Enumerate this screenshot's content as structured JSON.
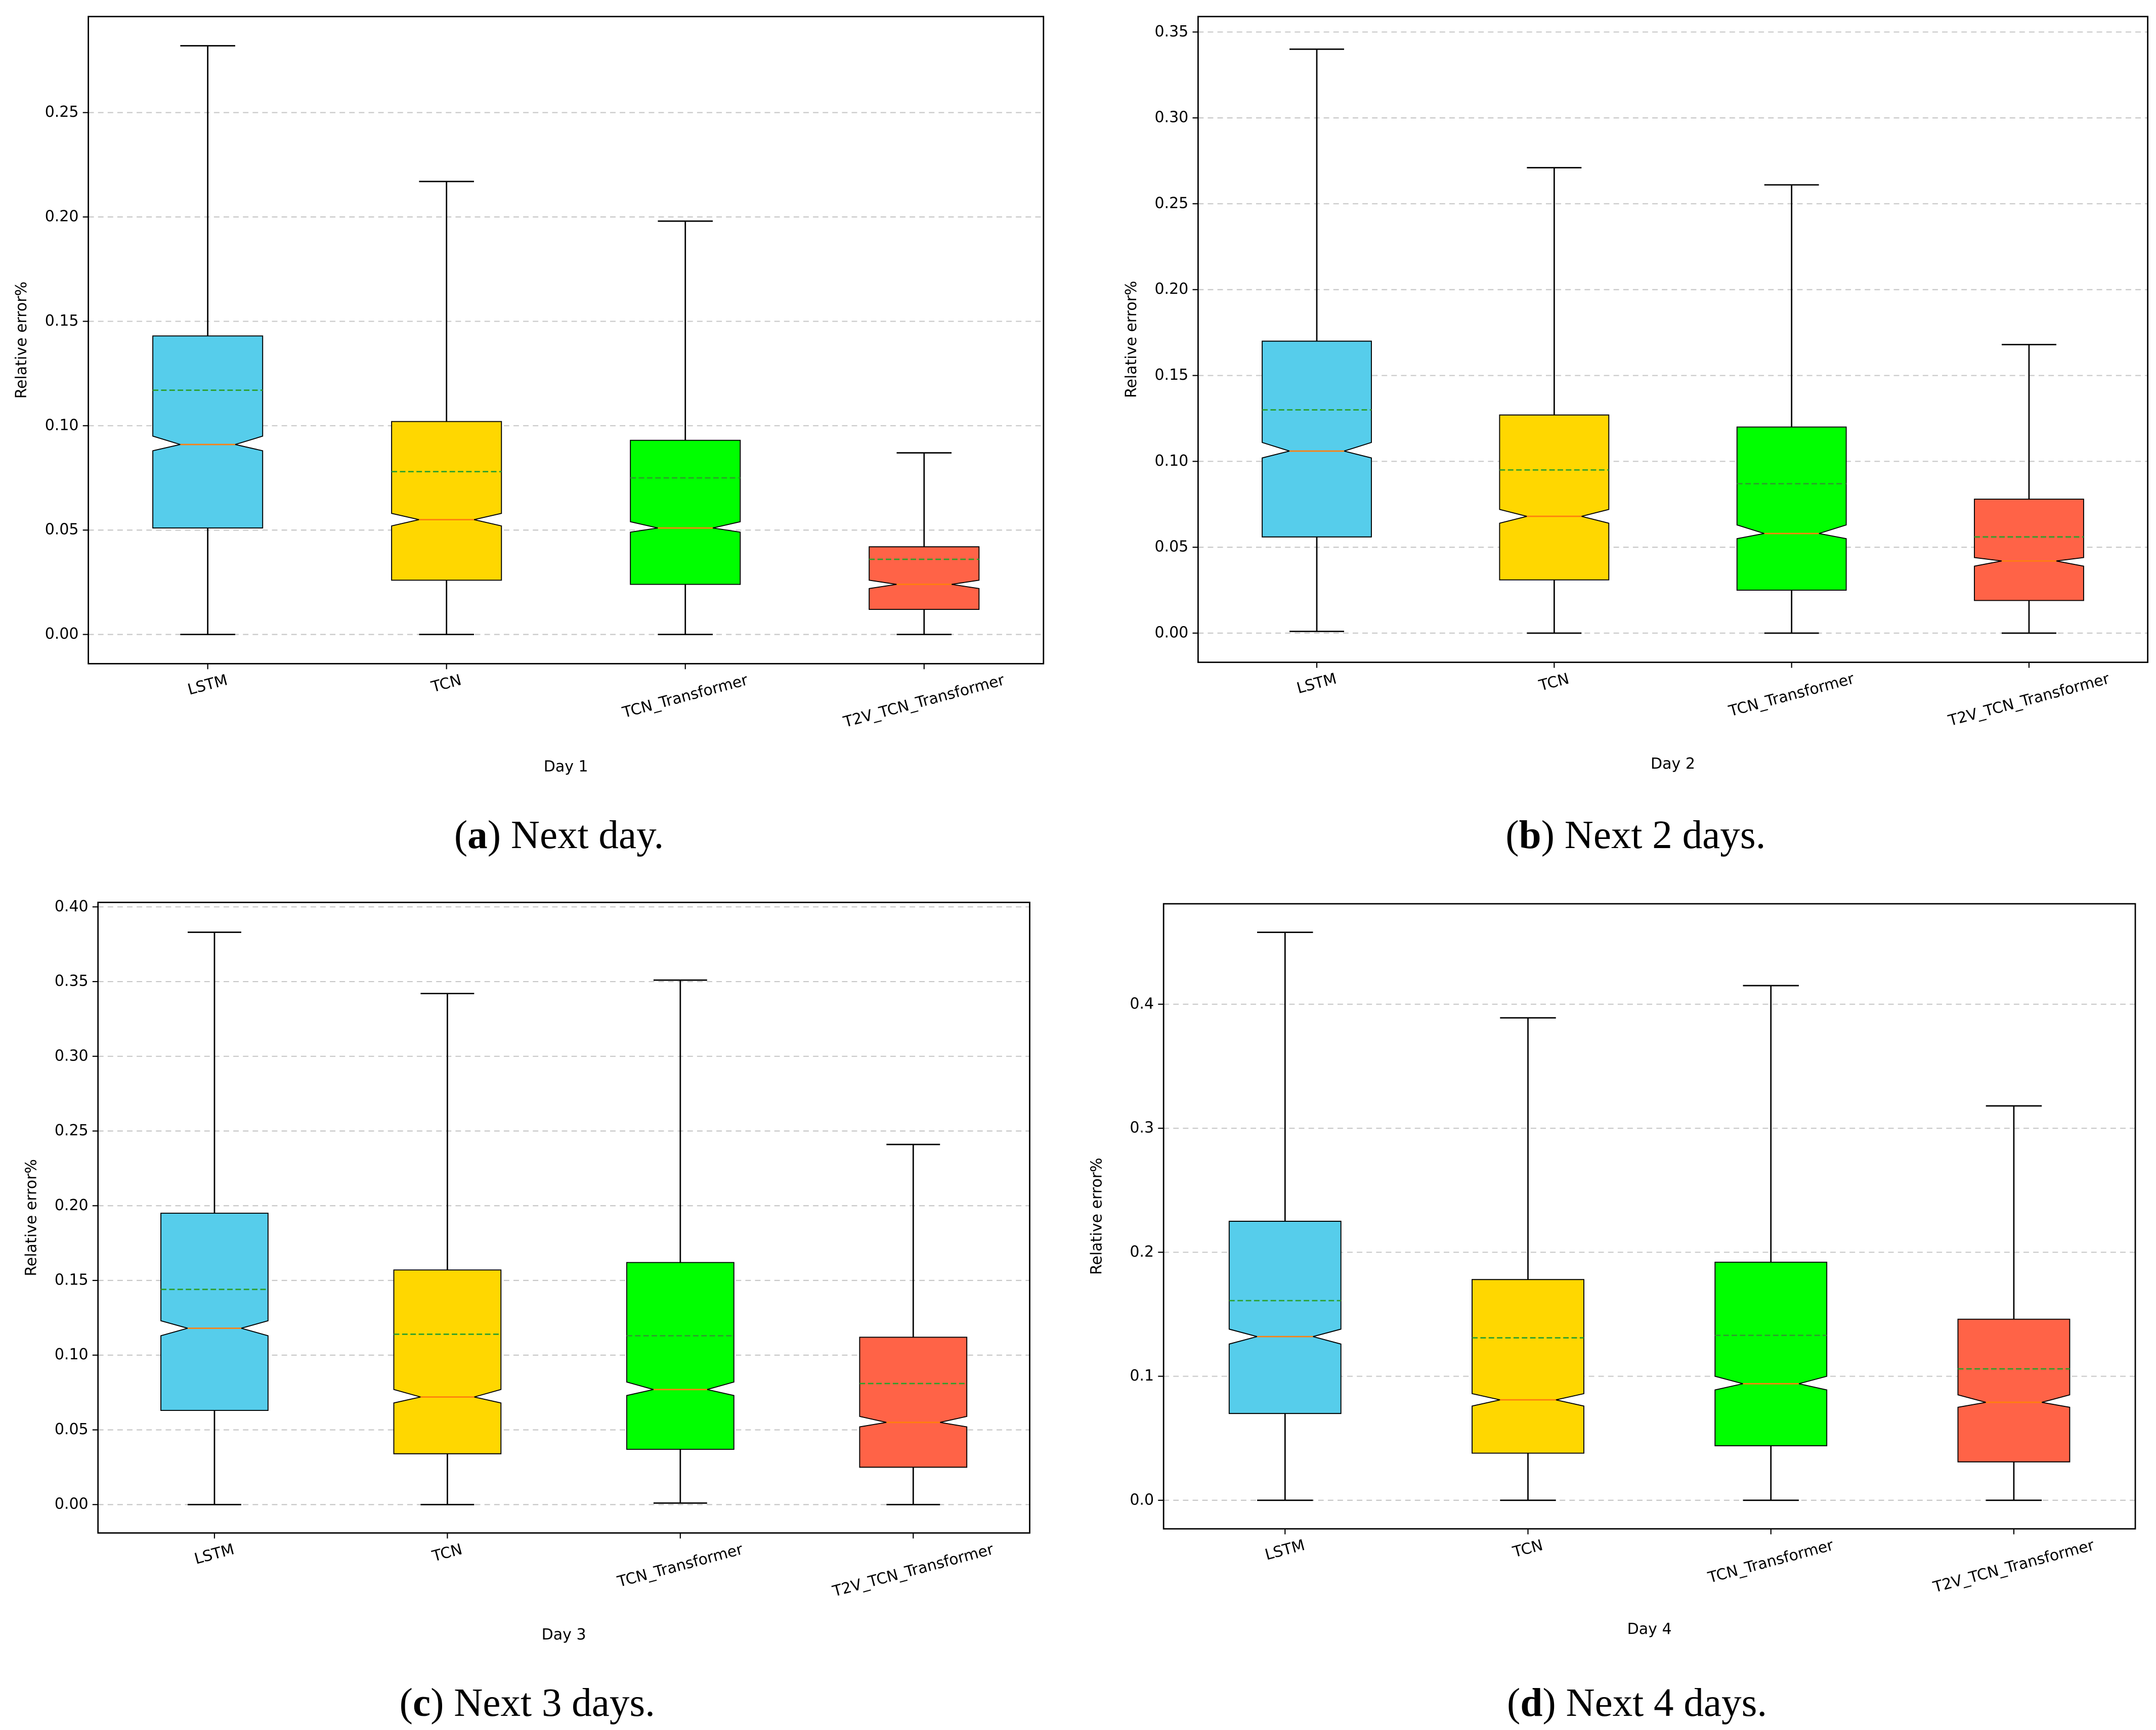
{
  "chart_data": [
    {
      "type": "box",
      "xlabel": "Day 1",
      "ylabel": "Relative error%",
      "caption": [
        "(",
        "a",
        ") Next day."
      ],
      "categories": [
        "LSTM",
        "TCN",
        "TCN_Transformer",
        "T2V_TCN_Transformer"
      ],
      "colors": [
        "#56cdeb",
        "#ffd700",
        "#00ff00",
        "#ff6347"
      ],
      "median_color": "#ff7f0e",
      "mean_color": "#2ca02c",
      "notch": true,
      "grid": true,
      "ylim": [
        -0.014,
        0.296
      ],
      "yticks": [
        {
          "value": 0,
          "label": "0.00"
        },
        0.05,
        {
          "value": 0.1,
          "label": "0.10"
        },
        0.15,
        {
          "value": 0.2,
          "label": "0.20"
        },
        0.25
      ],
      "boxes": [
        {
          "whislo": 0,
          "q1": 0.051,
          "med": 0.091,
          "q3": 0.143,
          "whishi": 0.282,
          "mean": 0.117,
          "notch_ci": [
            0.088,
            0.095
          ]
        },
        {
          "whislo": 0,
          "q1": 0.026,
          "med": 0.055,
          "q3": 0.102,
          "whishi": 0.217,
          "mean": 0.078,
          "notch_ci": [
            0.052,
            0.058
          ]
        },
        {
          "whislo": 0,
          "q1": 0.024,
          "med": 0.051,
          "q3": 0.093,
          "whishi": 0.198,
          "mean": 0.075,
          "notch_ci": [
            0.049,
            0.054
          ]
        },
        {
          "whislo": 0,
          "q1": 0.012,
          "med": 0.024,
          "q3": 0.042,
          "whishi": 0.087,
          "mean": 0.036,
          "notch_ci": [
            0.022,
            0.026
          ]
        }
      ]
    },
    {
      "type": "box",
      "xlabel": "Day 2",
      "ylabel": "Relative error%",
      "caption": [
        "(",
        "b",
        ") Next 2 days."
      ],
      "categories": [
        "LSTM",
        "TCN",
        "TCN_Transformer",
        "T2V_TCN_Transformer"
      ],
      "colors": [
        "#56cdeb",
        "#ffd700",
        "#00ff00",
        "#ff6347"
      ],
      "median_color": "#ff7f0e",
      "mean_color": "#2ca02c",
      "notch": true,
      "grid": true,
      "ylim": [
        -0.017,
        0.359
      ],
      "yticks": [
        {
          "value": 0,
          "label": "0.00"
        },
        0.05,
        {
          "value": 0.1,
          "label": "0.10"
        },
        0.15,
        {
          "value": 0.2,
          "label": "0.20"
        },
        0.25,
        {
          "value": 0.3,
          "label": "0.30"
        },
        0.35
      ],
      "boxes": [
        {
          "whislo": 0.001,
          "q1": 0.056,
          "med": 0.106,
          "q3": 0.17,
          "whishi": 0.34,
          "mean": 0.13,
          "notch_ci": [
            0.102,
            0.111
          ]
        },
        {
          "whislo": 0,
          "q1": 0.031,
          "med": 0.068,
          "q3": 0.127,
          "whishi": 0.271,
          "mean": 0.095,
          "notch_ci": [
            0.064,
            0.072
          ]
        },
        {
          "whislo": 0,
          "q1": 0.025,
          "med": 0.058,
          "q3": 0.12,
          "whishi": 0.261,
          "mean": 0.087,
          "notch_ci": [
            0.055,
            0.063
          ]
        },
        {
          "whislo": 0,
          "q1": 0.019,
          "med": 0.042,
          "q3": 0.078,
          "whishi": 0.168,
          "mean": 0.056,
          "notch_ci": [
            0.039,
            0.044
          ]
        }
      ]
    },
    {
      "type": "box",
      "xlabel": "Day 3",
      "ylabel": "Relative error%",
      "caption": [
        "(",
        "c",
        ") Next 3 days."
      ],
      "categories": [
        "LSTM",
        "TCN",
        "TCN_Transformer",
        "T2V_TCN_Transformer"
      ],
      "colors": [
        "#56cdeb",
        "#ffd700",
        "#00ff00",
        "#ff6347"
      ],
      "median_color": "#ff7f0e",
      "mean_color": "#2ca02c",
      "notch": true,
      "grid": true,
      "ylim": [
        -0.019,
        0.403
      ],
      "yticks": [
        {
          "value": 0,
          "label": "0.00"
        },
        0.05,
        {
          "value": 0.1,
          "label": "0.10"
        },
        0.15,
        {
          "value": 0.2,
          "label": "0.20"
        },
        0.25,
        {
          "value": 0.3,
          "label": "0.30"
        },
        0.35,
        {
          "value": 0.4,
          "label": "0.40"
        }
      ],
      "boxes": [
        {
          "whislo": 0,
          "q1": 0.063,
          "med": 0.118,
          "q3": 0.195,
          "whishi": 0.383,
          "mean": 0.144,
          "notch_ci": [
            0.113,
            0.123
          ]
        },
        {
          "whislo": 0,
          "q1": 0.034,
          "med": 0.072,
          "q3": 0.157,
          "whishi": 0.342,
          "mean": 0.114,
          "notch_ci": [
            0.068,
            0.077
          ]
        },
        {
          "whislo": 0.001,
          "q1": 0.037,
          "med": 0.077,
          "q3": 0.162,
          "whishi": 0.351,
          "mean": 0.113,
          "notch_ci": [
            0.073,
            0.082
          ]
        },
        {
          "whislo": 0,
          "q1": 0.025,
          "med": 0.055,
          "q3": 0.112,
          "whishi": 0.241,
          "mean": 0.081,
          "notch_ci": [
            0.052,
            0.059
          ]
        }
      ]
    },
    {
      "type": "box",
      "xlabel": "Day 4",
      "ylabel": "Relative error%",
      "caption": [
        "(",
        "d",
        ") Next 4 days."
      ],
      "categories": [
        "LSTM",
        "TCN",
        "TCN_Transformer",
        "T2V_TCN_Transformer"
      ],
      "colors": [
        "#56cdeb",
        "#ffd700",
        "#00ff00",
        "#ff6347"
      ],
      "median_color": "#ff7f0e",
      "mean_color": "#2ca02c",
      "notch": true,
      "grid": true,
      "ylim": [
        -0.023,
        0.481
      ],
      "yticks": [
        {
          "value": 0,
          "label": "0.0"
        },
        0.1,
        0.2,
        0.3,
        0.4
      ],
      "boxes": [
        {
          "whislo": 0,
          "q1": 0.07,
          "med": 0.132,
          "q3": 0.225,
          "whishi": 0.458,
          "mean": 0.161,
          "notch_ci": [
            0.126,
            0.138
          ]
        },
        {
          "whislo": 0,
          "q1": 0.038,
          "med": 0.081,
          "q3": 0.178,
          "whishi": 0.389,
          "mean": 0.131,
          "notch_ci": [
            0.076,
            0.086
          ]
        },
        {
          "whislo": 0,
          "q1": 0.044,
          "med": 0.094,
          "q3": 0.192,
          "whishi": 0.415,
          "mean": 0.133,
          "notch_ci": [
            0.089,
            0.1
          ]
        },
        {
          "whislo": 0,
          "q1": 0.031,
          "med": 0.079,
          "q3": 0.146,
          "whishi": 0.318,
          "mean": 0.106,
          "notch_ci": [
            0.075,
            0.085
          ]
        }
      ]
    }
  ]
}
